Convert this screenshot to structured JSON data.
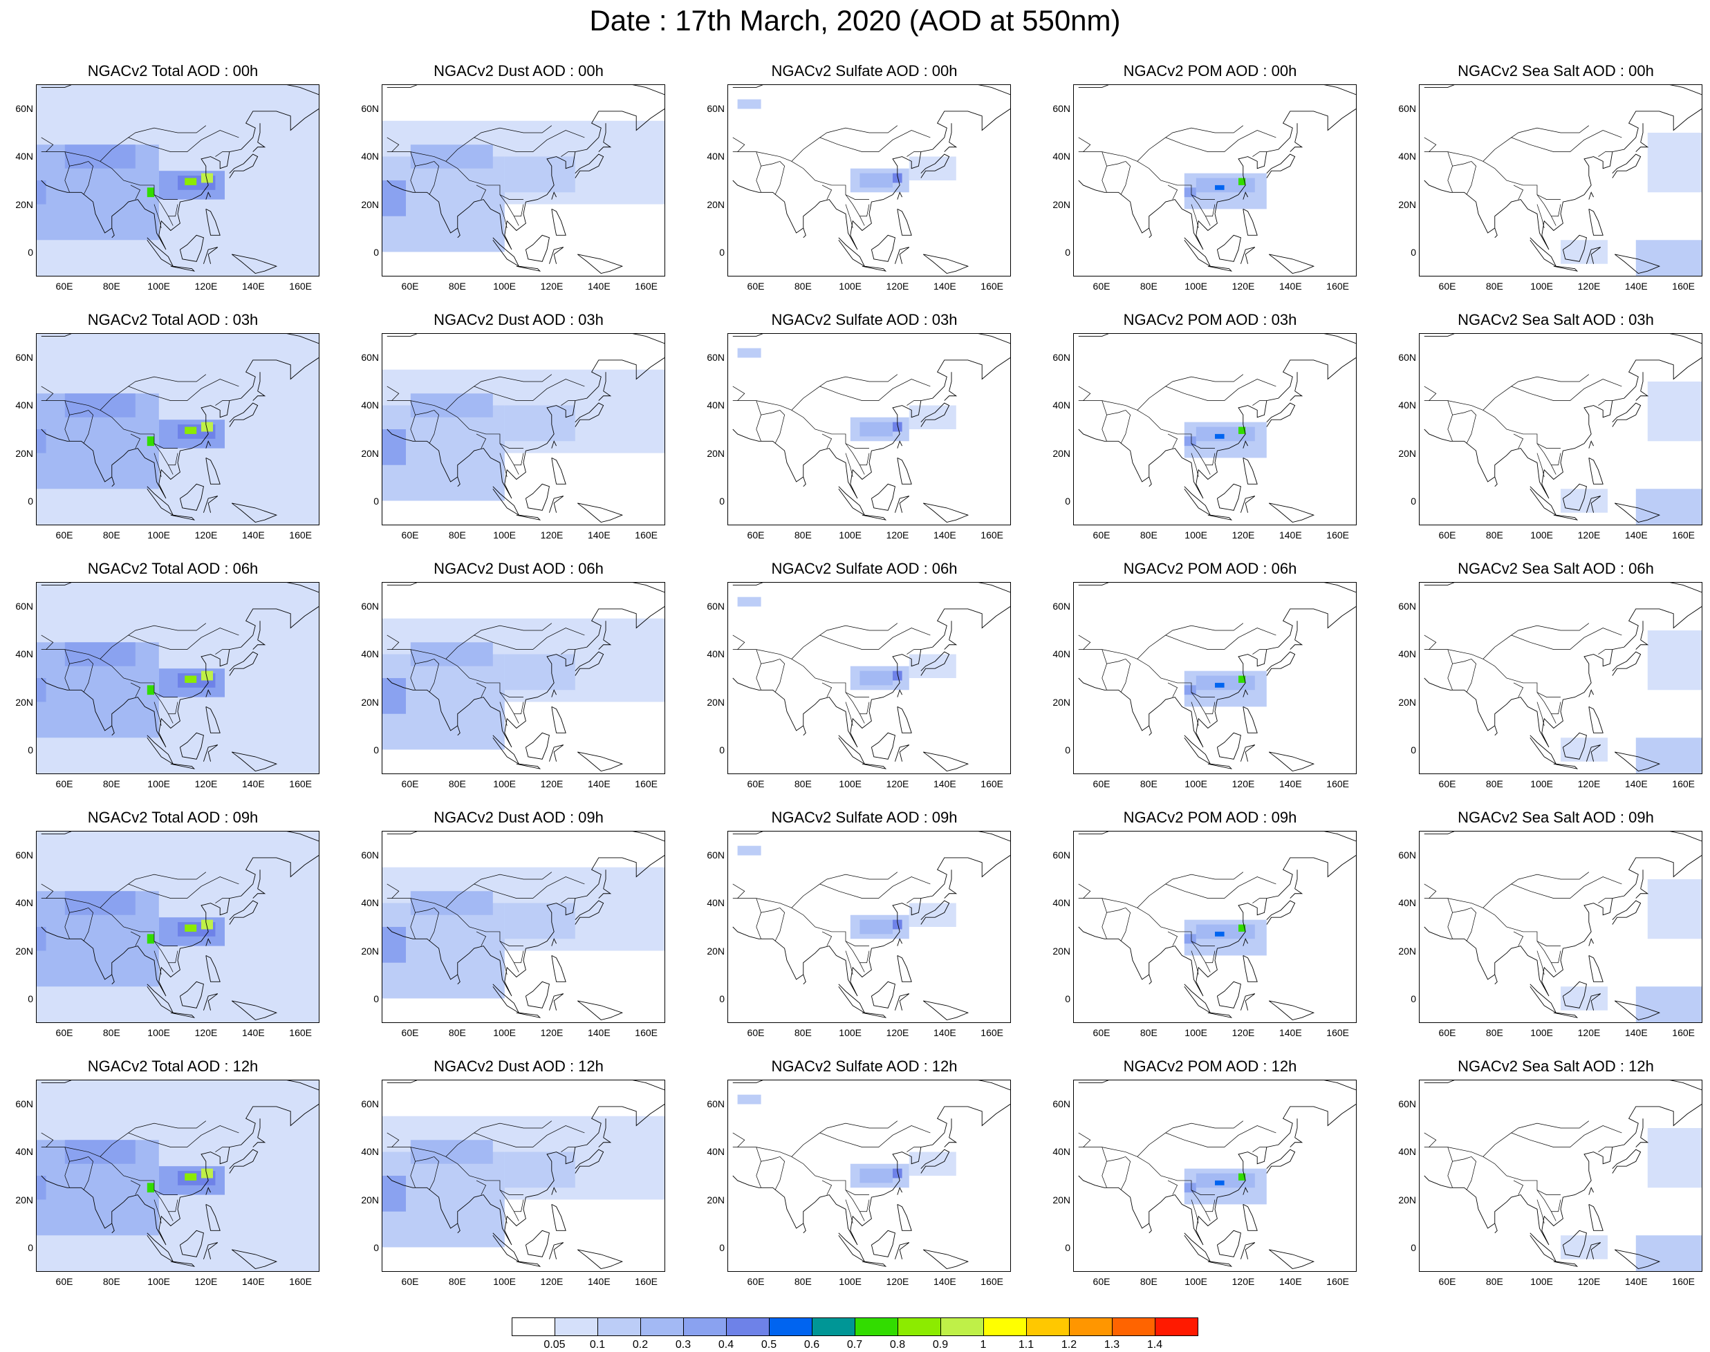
{
  "title": "Date : 17th March, 2020 (AOD at 550nm)",
  "map_axes": {
    "lon_range": [
      48,
      168
    ],
    "lat_range": [
      -10,
      70
    ],
    "x_ticks": [
      "60E",
      "80E",
      "100E",
      "120E",
      "140E",
      "160E"
    ],
    "x_tick_values": [
      60,
      80,
      100,
      120,
      140,
      160
    ],
    "y_ticks": [
      "60N",
      "40N",
      "20N",
      "0"
    ],
    "y_tick_values": [
      60,
      40,
      20,
      0
    ]
  },
  "panels": [
    {
      "title": "NGACv2 Total AOD : 00h",
      "species": "total",
      "hour": "00h"
    },
    {
      "title": "NGACv2 Dust AOD : 00h",
      "species": "dust",
      "hour": "00h"
    },
    {
      "title": "NGACv2 Sulfate AOD : 00h",
      "species": "sulfate",
      "hour": "00h"
    },
    {
      "title": "NGACv2 POM AOD : 00h",
      "species": "pom",
      "hour": "00h"
    },
    {
      "title": "NGACv2 Sea Salt AOD : 00h",
      "species": "seasalt",
      "hour": "00h"
    },
    {
      "title": "NGACv2 Total AOD : 03h",
      "species": "total",
      "hour": "03h"
    },
    {
      "title": "NGACv2 Dust AOD : 03h",
      "species": "dust",
      "hour": "03h"
    },
    {
      "title": "NGACv2 Sulfate AOD : 03h",
      "species": "sulfate",
      "hour": "03h"
    },
    {
      "title": "NGACv2 POM AOD : 03h",
      "species": "pom",
      "hour": "03h"
    },
    {
      "title": "NGACv2 Sea Salt AOD : 03h",
      "species": "seasalt",
      "hour": "03h"
    },
    {
      "title": "NGACv2 Total AOD : 06h",
      "species": "total",
      "hour": "06h"
    },
    {
      "title": "NGACv2 Dust AOD : 06h",
      "species": "dust",
      "hour": "06h"
    },
    {
      "title": "NGACv2 Sulfate AOD : 06h",
      "species": "sulfate",
      "hour": "06h"
    },
    {
      "title": "NGACv2 POM AOD : 06h",
      "species": "pom",
      "hour": "06h"
    },
    {
      "title": "NGACv2 Sea Salt AOD : 06h",
      "species": "seasalt",
      "hour": "06h"
    },
    {
      "title": "NGACv2 Total AOD : 09h",
      "species": "total",
      "hour": "09h"
    },
    {
      "title": "NGACv2 Dust AOD : 09h",
      "species": "dust",
      "hour": "09h"
    },
    {
      "title": "NGACv2 Sulfate AOD : 09h",
      "species": "sulfate",
      "hour": "09h"
    },
    {
      "title": "NGACv2 POM AOD : 09h",
      "species": "pom",
      "hour": "09h"
    },
    {
      "title": "NGACv2 Sea Salt  AOD : 09h",
      "species": "seasalt",
      "hour": "09h"
    },
    {
      "title": "NGACv2 Total AOD  : 12h",
      "species": "total",
      "hour": "12h"
    },
    {
      "title": "NGACv2 Dust AOD : 12h",
      "species": "dust",
      "hour": "12h"
    },
    {
      "title": "NGACv2 Sulfate AOD : 12h",
      "species": "sulfate",
      "hour": "12h"
    },
    {
      "title": "NGACv2 POM  AOD : 12h",
      "species": "pom",
      "hour": "12h"
    },
    {
      "title": "NGACv2 Sea Salt  AOD : 12h",
      "species": "seasalt",
      "hour": "12h"
    }
  ],
  "colorbar": {
    "labels": [
      "0.05",
      "0.1",
      "0.2",
      "0.3",
      "0.4",
      "0.5",
      "0.6",
      "0.7",
      "0.8",
      "0.9",
      "1",
      "1.1",
      "1.2",
      "1.3",
      "1.4"
    ],
    "colors": [
      "#ffffff",
      "#d5e0fa",
      "#bccdf7",
      "#a3b9f4",
      "#8aa2f0",
      "#6e82e8",
      "#0064f0",
      "#009696",
      "#32dc00",
      "#8ceb00",
      "#bff048",
      "#ffff00",
      "#ffc800",
      "#ff9600",
      "#ff6400",
      "#ff1a00"
    ]
  }
}
